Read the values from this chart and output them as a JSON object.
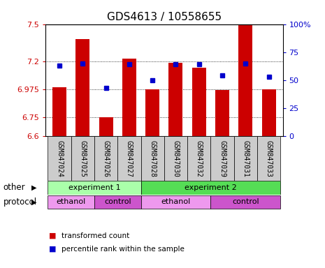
{
  "title": "GDS4613 / 10558655",
  "samples": [
    "GSM847024",
    "GSM847025",
    "GSM847026",
    "GSM847027",
    "GSM847028",
    "GSM847030",
    "GSM847032",
    "GSM847029",
    "GSM847031",
    "GSM847033"
  ],
  "transformed_count": [
    6.99,
    7.38,
    6.75,
    7.22,
    6.975,
    7.19,
    7.15,
    6.97,
    7.49,
    6.975
  ],
  "percentile_rank": [
    63,
    65,
    43,
    64,
    50,
    64,
    64,
    54,
    65,
    53
  ],
  "ymin": 6.6,
  "ymax": 7.5,
  "yticks": [
    6.6,
    6.75,
    6.975,
    7.2,
    7.5
  ],
  "ytick_labels": [
    "6.6",
    "6.75",
    "6.975",
    "7.2",
    "7.5"
  ],
  "right_yticks": [
    0,
    25,
    50,
    75,
    100
  ],
  "right_ytick_labels": [
    "0",
    "25",
    "50",
    "75",
    "100%"
  ],
  "bar_color": "#cc0000",
  "dot_color": "#0000cc",
  "grid_color": "#888888",
  "sample_bg_color": "#cccccc",
  "other_groups": [
    {
      "label": "experiment 1",
      "start": 0,
      "end": 4,
      "color": "#aaffaa"
    },
    {
      "label": "experiment 2",
      "start": 4,
      "end": 10,
      "color": "#55dd55"
    }
  ],
  "protocol_groups": [
    {
      "label": "ethanol",
      "start": 0,
      "end": 2,
      "color": "#ee99ee"
    },
    {
      "label": "control",
      "start": 2,
      "end": 4,
      "color": "#cc55cc"
    },
    {
      "label": "ethanol",
      "start": 4,
      "end": 7,
      "color": "#ee99ee"
    },
    {
      "label": "control",
      "start": 7,
      "end": 10,
      "color": "#cc55cc"
    }
  ],
  "other_label": "other",
  "protocol_label": "protocol",
  "legend_items": [
    {
      "label": "transformed count",
      "color": "#cc0000"
    },
    {
      "label": "percentile rank within the sample",
      "color": "#0000cc"
    }
  ],
  "title_fontsize": 11,
  "tick_fontsize": 8,
  "label_fontsize": 8.5,
  "sample_fontsize": 7,
  "group_fontsize": 8,
  "legend_fontsize": 7.5
}
